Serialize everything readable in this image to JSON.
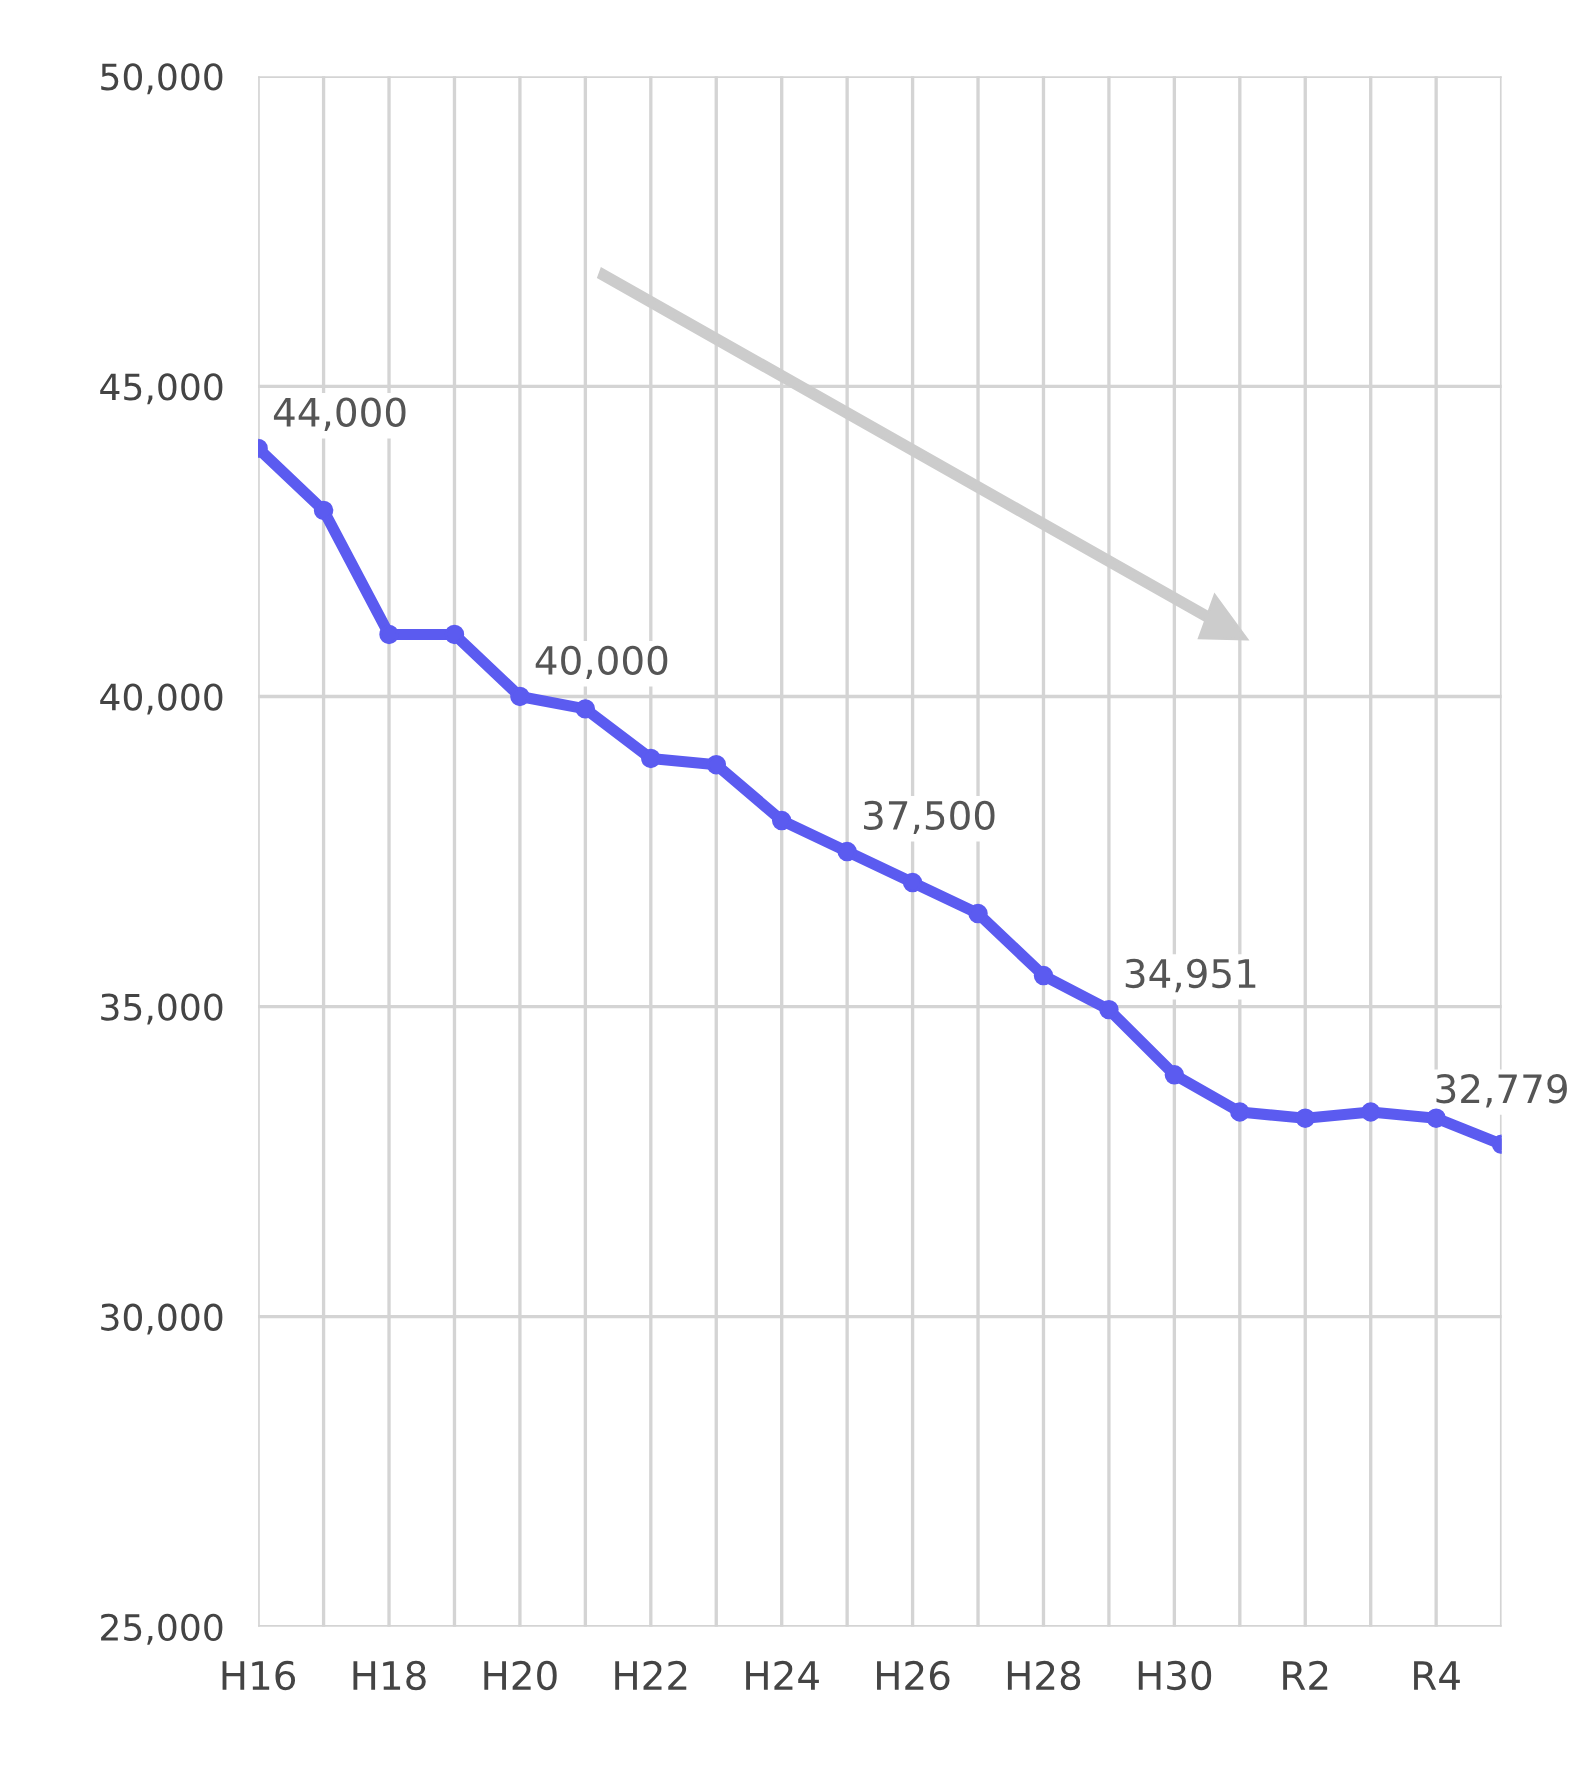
{
  "chart_data": {
    "type": "line",
    "categories": [
      "H16",
      null,
      "H18",
      null,
      "H20",
      null,
      "H22",
      null,
      "H24",
      null,
      "H26",
      null,
      "H28",
      null,
      "H30",
      null,
      "R2",
      null,
      "R4",
      null
    ],
    "series": [
      {
        "color": "#5b5bf0",
        "values": [
          44000,
          43000,
          41000,
          41000,
          40000,
          39800,
          39000,
          38900,
          38000,
          37500,
          37000,
          36500,
          35500,
          34951,
          33900,
          33300,
          33200,
          33300,
          33200,
          32779
        ],
        "value_labels": [
          "44,000",
          null,
          null,
          null,
          "40,000",
          null,
          null,
          null,
          null,
          "37,500",
          null,
          null,
          null,
          "34,951",
          null,
          null,
          null,
          null,
          null,
          "32,779"
        ]
      }
    ],
    "ylim": [
      25000,
      50000
    ],
    "yticks": [
      {
        "value": 25000,
        "label": "25,000"
      },
      {
        "value": 30000,
        "label": "30,000"
      },
      {
        "value": 35000,
        "label": "35,000"
      },
      {
        "value": 40000,
        "label": "40,000"
      },
      {
        "value": 45000,
        "label": "45,000"
      },
      {
        "value": 50000,
        "label": "50,000"
      }
    ],
    "grid": true,
    "marker": "circle",
    "line_style": "solid",
    "legend": false
  }
}
